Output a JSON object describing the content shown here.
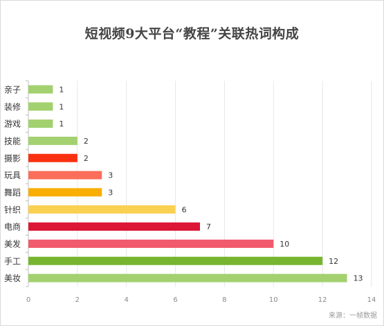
{
  "chart_data": {
    "type": "bar",
    "orientation": "horizontal",
    "title": "短视频9大平台“教程”关联热词构成",
    "categories": [
      "亲子",
      "装修",
      "游戏",
      "技能",
      "摄影",
      "玩具",
      "舞蹈",
      "针织",
      "电商",
      "美发",
      "手工",
      "美妆"
    ],
    "values": [
      1,
      1,
      1,
      2,
      2,
      3,
      3,
      6,
      7,
      10,
      12,
      13
    ],
    "colors": [
      "#a3d16f",
      "#a3d16f",
      "#a3d16f",
      "#a3d16f",
      "#fa3111",
      "#fb6e5a",
      "#f8ae03",
      "#fad052",
      "#dc1635",
      "#f15a6b",
      "#77b530",
      "#a3d16f"
    ],
    "xlim": [
      0,
      14
    ],
    "x_ticks": [
      "0",
      "2",
      "4",
      "6",
      "8",
      "10",
      "12",
      "14"
    ],
    "grid": true,
    "xlabel": "",
    "ylabel": ""
  },
  "source": "来源：一帧数据"
}
